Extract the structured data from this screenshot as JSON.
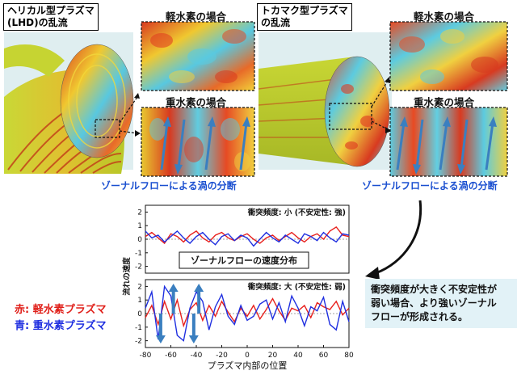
{
  "left_panel": {
    "title": "ヘリカル型プラズマ\n(LHD)の乱流",
    "light_label": "軽水素の場合",
    "heavy_label": "重水素の場合",
    "caption": "ゾーナルフローによる渦の分断"
  },
  "right_panel": {
    "title": "トカマク型プラズマ\nの乱流",
    "light_label": "軽水素の場合",
    "heavy_label": "重水素の場合",
    "caption": "ゾーナルフローによる渦の分断"
  },
  "legend": {
    "red": "赤: 軽水素プラズマ",
    "blue": "青: 重水素プラズマ"
  },
  "note": "衝突頻度が大きく不安定性が\n弱い場合、より強いゾーナル\nフローが形成される。",
  "colors": {
    "red": "#e8201c",
    "blue": "#1f2fe0",
    "caption_blue": "#1a4fd0",
    "arrow": "#3a7fc0",
    "note_bg": "#e2f2f7"
  },
  "chart_data": {
    "type": "line",
    "center_label": "ゾーナルフローの速度分布",
    "xlabel": "プラズマ内部の位置",
    "ylabel": "流れの速度",
    "x_ticks": [
      -80,
      -60,
      -40,
      -20,
      0,
      20,
      40,
      60,
      80
    ],
    "xlim": [
      -80,
      80
    ],
    "panels": [
      {
        "title": "衝突頻度: 小 (不安定性: 強)",
        "ylim": [
          -2.5,
          2.5
        ],
        "y_ticks": [
          2,
          1,
          0,
          -1,
          -2
        ],
        "series": [
          {
            "color": "red",
            "x": [
              -80,
              -75,
              -70,
              -65,
              -60,
              -55,
              -50,
              -45,
              -40,
              -35,
              -30,
              -25,
              -20,
              -15,
              -10,
              -5,
              0,
              5,
              10,
              15,
              20,
              25,
              30,
              35,
              40,
              45,
              50,
              55,
              60,
              65,
              70,
              75,
              80
            ],
            "y": [
              0.2,
              0.5,
              0.1,
              -0.3,
              0.4,
              0.2,
              -0.2,
              0.3,
              0.6,
              0.1,
              -0.2,
              0.3,
              0.5,
              0.1,
              -0.1,
              0.2,
              0.4,
              0.0,
              -0.3,
              0.1,
              0.3,
              -0.1,
              0.2,
              0.5,
              0.1,
              -0.2,
              0.2,
              0.4,
              0.0,
              0.6,
              0.9,
              0.3,
              0.2
            ]
          },
          {
            "color": "blue",
            "x": [
              -80,
              -75,
              -70,
              -65,
              -60,
              -55,
              -50,
              -45,
              -40,
              -35,
              -30,
              -25,
              -20,
              -15,
              -10,
              -5,
              0,
              5,
              10,
              15,
              20,
              25,
              30,
              35,
              40,
              45,
              50,
              55,
              60,
              65,
              70,
              75,
              80
            ],
            "y": [
              0.6,
              0.1,
              0.3,
              -0.2,
              0.2,
              0.6,
              0.1,
              -0.3,
              0.2,
              0.5,
              0.0,
              -0.4,
              0.2,
              0.4,
              -0.1,
              0.3,
              0.1,
              -0.5,
              0.0,
              0.5,
              0.1,
              -0.2,
              0.3,
              0.0,
              -0.3,
              0.4,
              0.2,
              -0.1,
              0.5,
              0.1,
              -0.2,
              0.4,
              0.3
            ]
          }
        ]
      },
      {
        "title": "衝突頻度: 大 (不安定性: 弱)",
        "ylim": [
          -2.5,
          2.5
        ],
        "y_ticks": [
          2,
          1,
          0,
          -1,
          -2
        ],
        "series": [
          {
            "color": "red",
            "x": [
              -80,
              -75,
              -70,
              -65,
              -60,
              -55,
              -50,
              -45,
              -40,
              -35,
              -30,
              -25,
              -20,
              -15,
              -10,
              -5,
              0,
              5,
              10,
              15,
              20,
              25,
              30,
              35,
              40,
              45,
              50,
              55,
              60,
              65,
              70,
              75,
              80
            ],
            "y": [
              -0.3,
              0.6,
              -0.8,
              0.9,
              -0.4,
              1.0,
              -0.9,
              0.3,
              0.8,
              -0.5,
              0.6,
              -0.2,
              0.9,
              0.1,
              -0.6,
              0.4,
              -0.2,
              0.6,
              -0.4,
              0.3,
              1.1,
              0.2,
              -0.5,
              0.4,
              0.2,
              0.6,
              -0.3,
              0.8,
              0.5,
              0.3,
              0.9,
              -0.1,
              0.4
            ]
          },
          {
            "color": "blue",
            "x": [
              -80,
              -75,
              -70,
              -65,
              -60,
              -55,
              -50,
              -45,
              -40,
              -35,
              -30,
              -25,
              -20,
              -15,
              -10,
              -5,
              0,
              5,
              10,
              15,
              20,
              25,
              30,
              35,
              40,
              45,
              50,
              55,
              60,
              65,
              70,
              75,
              80
            ],
            "y": [
              0.4,
              1.6,
              -1.9,
              2.0,
              1.3,
              -1.6,
              -2.0,
              0.4,
              1.6,
              0.9,
              -1.2,
              0.5,
              1.4,
              -0.2,
              -0.8,
              0.6,
              -0.5,
              -0.2,
              0.7,
              1.0,
              -0.4,
              0.8,
              -0.6,
              1.3,
              0.4,
              -0.9,
              0.5,
              0.2,
              1.2,
              -0.8,
              -1.2,
              0.9,
              -0.6
            ]
          }
        ]
      }
    ]
  }
}
